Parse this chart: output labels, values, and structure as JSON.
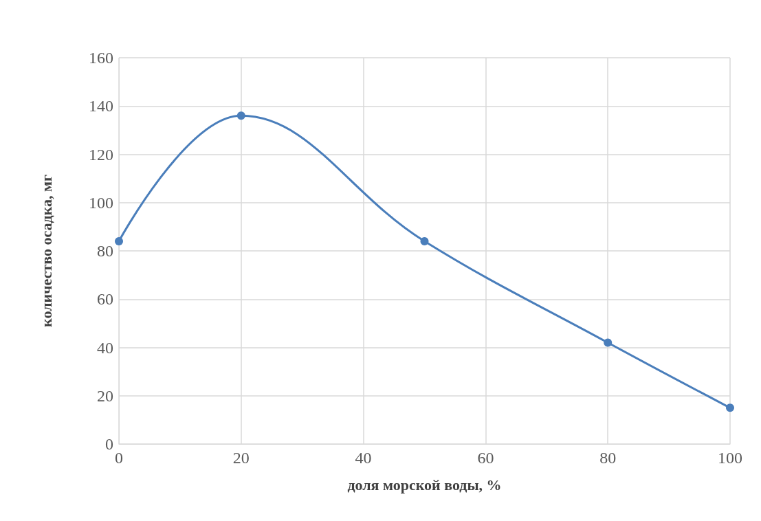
{
  "chart_data": {
    "type": "line",
    "xlabel": "доля морской воды, %",
    "ylabel": "количество осадка, мг",
    "x": [
      0,
      20,
      50,
      80,
      100
    ],
    "series": [
      {
        "color": "#4a7ebb",
        "values": [
          84,
          136,
          84,
          42,
          15
        ]
      }
    ],
    "xlim": [
      0,
      100
    ],
    "xticks": [
      0,
      20,
      40,
      60,
      80,
      100
    ],
    "ylim": [
      0,
      160
    ],
    "yticks": [
      0,
      20,
      40,
      60,
      80,
      100,
      120,
      140,
      160
    ],
    "grid": true,
    "marker": "circle",
    "line_style": "solid"
  }
}
